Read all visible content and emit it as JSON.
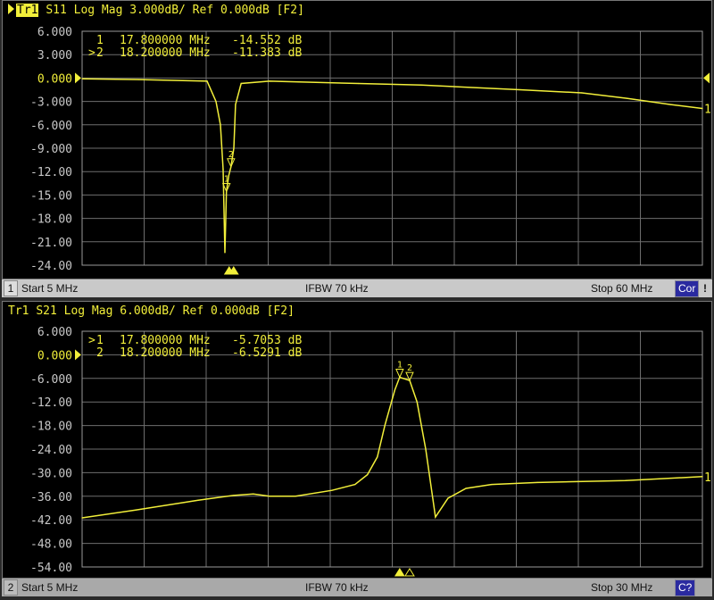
{
  "colors": {
    "trace": "#f2ef3a",
    "grid": "#6e6e6e",
    "tick_label": "#c8c8c8",
    "ref_label": "#f2ef3a",
    "background": "#000000",
    "cor_badge": "#2a2aa0"
  },
  "chart_data": [
    {
      "type": "line",
      "title": "S11 Log Mag 3.000dB/ Ref 0.000dB [F2]",
      "trace_label": "Tr1",
      "active": true,
      "xlim": [
        5,
        60
      ],
      "x_unit": "MHz",
      "ylim": [
        -24,
        6
      ],
      "y_unit": "dB",
      "grid": true,
      "x_divisions": 10,
      "y_ticks": [
        6,
        3,
        0,
        -3,
        -6,
        -9,
        -12,
        -15,
        -18,
        -21,
        -24
      ],
      "y_tick_labels": [
        "6.000",
        "3.000",
        "0.000",
        "-3.000",
        "-6.000",
        "-9.000",
        "-12.00",
        "-15.00",
        "-18.00",
        "-21.00",
        "-24.00"
      ],
      "ref_level": 0,
      "series": [
        {
          "x": [
            5,
            10,
            16.08,
            16.87,
            17.27,
            17.5,
            17.66,
            17.8,
            18.0,
            18.2,
            18.45,
            18.6,
            19.1,
            21.6,
            29.5,
            35.1,
            43.8,
            49.3,
            53.3,
            57.2,
            60
          ],
          "y": [
            -0.1,
            -0.2,
            -0.4,
            -3,
            -6,
            -11.7,
            -22.4,
            -14.552,
            -12.5,
            -11.383,
            -9,
            -3.4,
            -0.7,
            -0.4,
            -0.7,
            -0.9,
            -1.5,
            -1.9,
            -2.6,
            -3.4,
            -3.9
          ]
        }
      ],
      "trace_end_label": "1",
      "markers": [
        {
          "label": "1",
          "prefix": " ",
          "freq": "17.800000 MHz",
          "value": "-14.552 dB",
          "x": 17.8,
          "y": -14.552
        },
        {
          "label": "2",
          "prefix": ">",
          "freq": "18.200000 MHz",
          "value": "-11.383 dB",
          "x": 18.2,
          "y": -11.383
        }
      ],
      "status": {
        "channel": "1",
        "start": "Start 5 MHz",
        "ifbw": "IFBW 70 kHz",
        "stop": "Stop 60 MHz",
        "cor": "Cor",
        "warning": "!"
      }
    },
    {
      "type": "line",
      "title": "S21 Log Mag 6.000dB/ Ref 0.000dB [F2]",
      "trace_label": "Tr1",
      "active": false,
      "xlim": [
        5,
        30
      ],
      "x_unit": "MHz",
      "ylim": [
        -54,
        6
      ],
      "y_unit": "dB",
      "grid": true,
      "x_divisions": 10,
      "y_ticks": [
        6,
        0,
        -6,
        -12,
        -18,
        -24,
        -30,
        -36,
        -42,
        -48,
        -54
      ],
      "y_tick_labels": [
        "6.000",
        "0.000",
        "-6.000",
        "-12.00",
        "-18.00",
        "-24.00",
        "-30.00",
        "-36.00",
        "-42.00",
        "-48.00",
        "-54.00"
      ],
      "ref_level": 0,
      "series": [
        {
          "x": [
            5,
            7.16,
            9.68,
            11.1,
            11.9,
            12.55,
            13.6,
            15.07,
            16.0,
            16.5,
            16.9,
            17.2,
            17.6,
            17.8,
            18.2,
            18.5,
            18.85,
            19.24,
            19.75,
            20.47,
            21.5,
            23.35,
            26.9,
            30
          ],
          "y": [
            -41.5,
            -39.5,
            -37,
            -35.8,
            -35.4,
            -36,
            -36,
            -34.5,
            -33,
            -30.5,
            -26,
            -18,
            -9,
            -5.7053,
            -6.5291,
            -12,
            -24,
            -41.3,
            -36.5,
            -34,
            -33,
            -32.5,
            -32,
            -31
          ]
        }
      ],
      "trace_end_label": "1",
      "markers": [
        {
          "label": "1",
          "prefix": ">",
          "freq": "17.800000 MHz",
          "value": "-5.7053 dB",
          "x": 17.8,
          "y": -5.7053
        },
        {
          "label": "2",
          "prefix": " ",
          "freq": "18.200000 MHz",
          "value": "-6.5291 dB",
          "x": 18.2,
          "y": -6.5291
        }
      ],
      "status": {
        "channel": "2",
        "start": "Start 5 MHz",
        "ifbw": "IFBW 70 kHz",
        "stop": "Stop 30 MHz",
        "cor": "C?",
        "warning": ""
      }
    }
  ]
}
